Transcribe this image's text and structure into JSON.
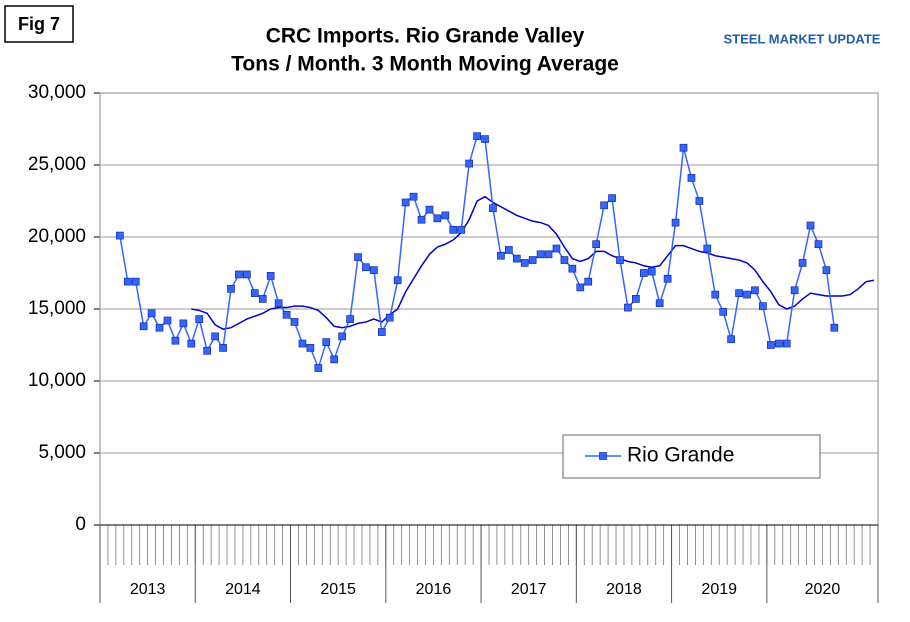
{
  "chart_data": {
    "type": "line",
    "figure_label": "Fig 7",
    "title": "CRC Imports. Rio Grande Valley",
    "subtitle": "Tons / Month. 3 Month Moving Average",
    "logo": "STEEL MARKET UPDATE",
    "categories": [
      null,
      null,
      null,
      null,
      null,
      null,
      null,
      null,
      null,
      null,
      null,
      null,
      null,
      null,
      null,
      null,
      null,
      null,
      null,
      null,
      null,
      null,
      null,
      null,
      null,
      null,
      null,
      null,
      null,
      null,
      null,
      null,
      null,
      null,
      null,
      null,
      null,
      null,
      null,
      null,
      null,
      null,
      null,
      null,
      null,
      null,
      null,
      null,
      null,
      null,
      null,
      null,
      null,
      null,
      null,
      null,
      null,
      null,
      null,
      null,
      null,
      null,
      null,
      null,
      null,
      null,
      null,
      null,
      null,
      null,
      null,
      null,
      null,
      null,
      null,
      null,
      null,
      null,
      null,
      null,
      null,
      null,
      null,
      null,
      null,
      null,
      null,
      null,
      null,
      null,
      null,
      null,
      null,
      null,
      null,
      null,
      null,
      null
    ],
    "category_groups": [
      {
        "label": "2013",
        "count": 12
      },
      {
        "label": "2014",
        "count": 12
      },
      {
        "label": "2015",
        "count": 12
      },
      {
        "label": "2016",
        "count": 12
      },
      {
        "label": "2017",
        "count": 12
      },
      {
        "label": "2018",
        "count": 12
      },
      {
        "label": "2019",
        "count": 12
      },
      {
        "label": "2020",
        "count": 14
      }
    ],
    "series": [
      {
        "name": "Rio Grande",
        "color": "#3366ff",
        "values": [
          null,
          null,
          20100,
          16900,
          16900,
          13800,
          14700,
          13700,
          14200,
          12800,
          14000,
          12600,
          14300,
          12100,
          13100,
          12300,
          16400,
          17400,
          17400,
          16100,
          15700,
          17300,
          15400,
          14600,
          14100,
          12600,
          12300,
          10900,
          12700,
          11500,
          13100,
          14300,
          18600,
          17900,
          17700,
          13400,
          14400,
          17000,
          22400,
          22800,
          21200,
          21900,
          21300,
          21500,
          20500,
          20500,
          25100,
          27000,
          26800,
          22000,
          18700,
          19100,
          18500,
          18200,
          18400,
          18800,
          18800,
          19200,
          18400,
          17800,
          16500,
          16900,
          19500,
          22200,
          22700,
          18400,
          15100,
          15700,
          17500,
          17600,
          15400,
          17100,
          21000,
          26200,
          24100,
          22500,
          19200,
          16000,
          14800,
          12900,
          16100,
          16000,
          16300,
          15200,
          12500,
          12600,
          12600,
          16300,
          18200,
          20800,
          19500,
          17700,
          13700,
          null,
          null,
          null,
          null,
          null
        ]
      }
    ],
    "trend_color": "#0000cc",
    "trend_values": [
      null,
      null,
      null,
      null,
      null,
      null,
      null,
      null,
      null,
      null,
      null,
      15000,
      14900,
      14700,
      13900,
      13600,
      13700,
      14000,
      14300,
      14500,
      14700,
      15000,
      15100,
      15100,
      15200,
      15200,
      15100,
      14900,
      14400,
      13800,
      13700,
      13800,
      14000,
      14100,
      14300,
      14100,
      14600,
      15000,
      16200,
      17100,
      18000,
      18800,
      19300,
      19500,
      19800,
      20300,
      21200,
      22500,
      22800,
      22400,
      22100,
      21800,
      21500,
      21300,
      21100,
      21000,
      20800,
      20200,
      19300,
      18500,
      18300,
      18500,
      19000,
      19000,
      18700,
      18500,
      18300,
      18200,
      18000,
      17900,
      18000,
      18700,
      19400,
      19400,
      19200,
      19000,
      18900,
      18700,
      18600,
      18500,
      18400,
      18200,
      17700,
      16900,
      16200,
      15300,
      15000,
      15200,
      15700,
      16100,
      16000,
      15900,
      15900,
      15900,
      16000,
      16400,
      16900,
      17000
    ],
    "ylim": [
      0,
      30000
    ],
    "yticks": [
      0,
      {
        "value": 5000,
        "label": "5,000"
      },
      {
        "value": 10000,
        "label": "10,000"
      },
      {
        "value": 15000,
        "label": "15,000"
      },
      {
        "value": 20000,
        "label": "20,000"
      },
      {
        "value": 25000,
        "label": "25,000"
      },
      {
        "value": 30000,
        "label": "30,000"
      }
    ],
    "grid": true,
    "legend": "lower-right"
  }
}
